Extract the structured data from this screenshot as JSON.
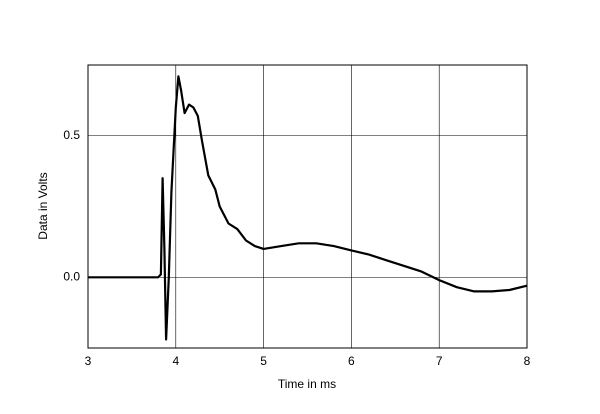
{
  "chart_data": {
    "type": "line",
    "xlabel": "Time in ms",
    "ylabel": "Data in Volts",
    "xlim": [
      3,
      8
    ],
    "ylim": [
      -0.25,
      0.75
    ],
    "xticks": [
      3,
      4,
      5,
      6,
      7,
      8
    ],
    "yticks": [
      {
        "value": 0,
        "label": "0.0"
      },
      {
        "value": 0.5,
        "label": "0.5"
      }
    ],
    "grid": true,
    "series": [
      {
        "color": "#000000",
        "x": [
          3.0,
          3.8,
          3.83,
          3.85,
          3.87,
          3.89,
          3.92,
          3.95,
          4.0,
          4.03,
          4.06,
          4.1,
          4.15,
          4.2,
          4.25,
          4.3,
          4.37,
          4.45,
          4.5,
          4.6,
          4.7,
          4.8,
          4.9,
          5.0,
          5.2,
          5.4,
          5.6,
          5.8,
          6.0,
          6.2,
          6.4,
          6.6,
          6.8,
          7.0,
          7.2,
          7.4,
          7.6,
          7.8,
          8.0
        ],
        "values": [
          0,
          0,
          0.01,
          0.35,
          0.1,
          -0.22,
          0.0,
          0.3,
          0.6,
          0.71,
          0.66,
          0.58,
          0.61,
          0.6,
          0.57,
          0.48,
          0.36,
          0.31,
          0.25,
          0.19,
          0.17,
          0.13,
          0.11,
          0.1,
          0.11,
          0.12,
          0.12,
          0.11,
          0.095,
          0.08,
          0.06,
          0.04,
          0.02,
          -0.01,
          -0.035,
          -0.05,
          -0.05,
          -0.045,
          -0.03
        ]
      }
    ]
  }
}
